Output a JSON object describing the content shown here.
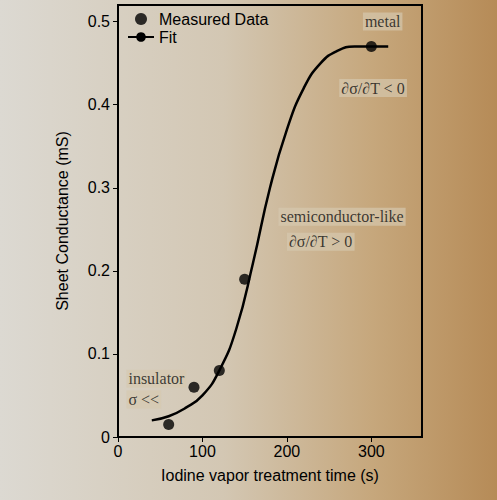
{
  "chart_data": {
    "type": "scatter",
    "x_label": "Iodine vapor treatment time (s)",
    "y_label": "Sheet Conductance (mS)",
    "xlim": [
      0,
      360
    ],
    "xticks": [
      0,
      100,
      200,
      300
    ],
    "ylim": [
      0,
      0.52
    ],
    "yticks": [
      0,
      0.1,
      0.2,
      0.3,
      0.4,
      0.5
    ],
    "grid": false,
    "legend": "upper left",
    "series": [
      {
        "name": "Measured Data",
        "type": "scatter",
        "marker": "circle",
        "color": "#000000",
        "x": [
          60,
          90,
          120,
          150,
          300
        ],
        "values": [
          0.015,
          0.06,
          0.08,
          0.19,
          0.47
        ]
      },
      {
        "name": "Fit",
        "type": "line",
        "line_style": "solid",
        "color": "#000000",
        "x": [
          40,
          60,
          80,
          100,
          120,
          140,
          160,
          180,
          200,
          220,
          240,
          260,
          280,
          300,
          320
        ],
        "values": [
          0.02,
          0.025,
          0.035,
          0.05,
          0.08,
          0.13,
          0.21,
          0.3,
          0.37,
          0.42,
          0.45,
          0.465,
          0.47,
          0.47,
          0.47
        ]
      }
    ],
    "annotations": [
      {
        "text": "insulator",
        "x": 10,
        "y": 0.07
      },
      {
        "text": "σ <<",
        "x": 10,
        "y": 0.045
      },
      {
        "text": "semiconductor-like",
        "x": 190,
        "y": 0.265
      },
      {
        "text": "∂σ/∂T > 0",
        "x": 200,
        "y": 0.235
      },
      {
        "text": "metal",
        "x": 290,
        "y": 0.5
      },
      {
        "text": "∂σ/∂T < 0",
        "x": 262,
        "y": 0.42
      }
    ]
  }
}
